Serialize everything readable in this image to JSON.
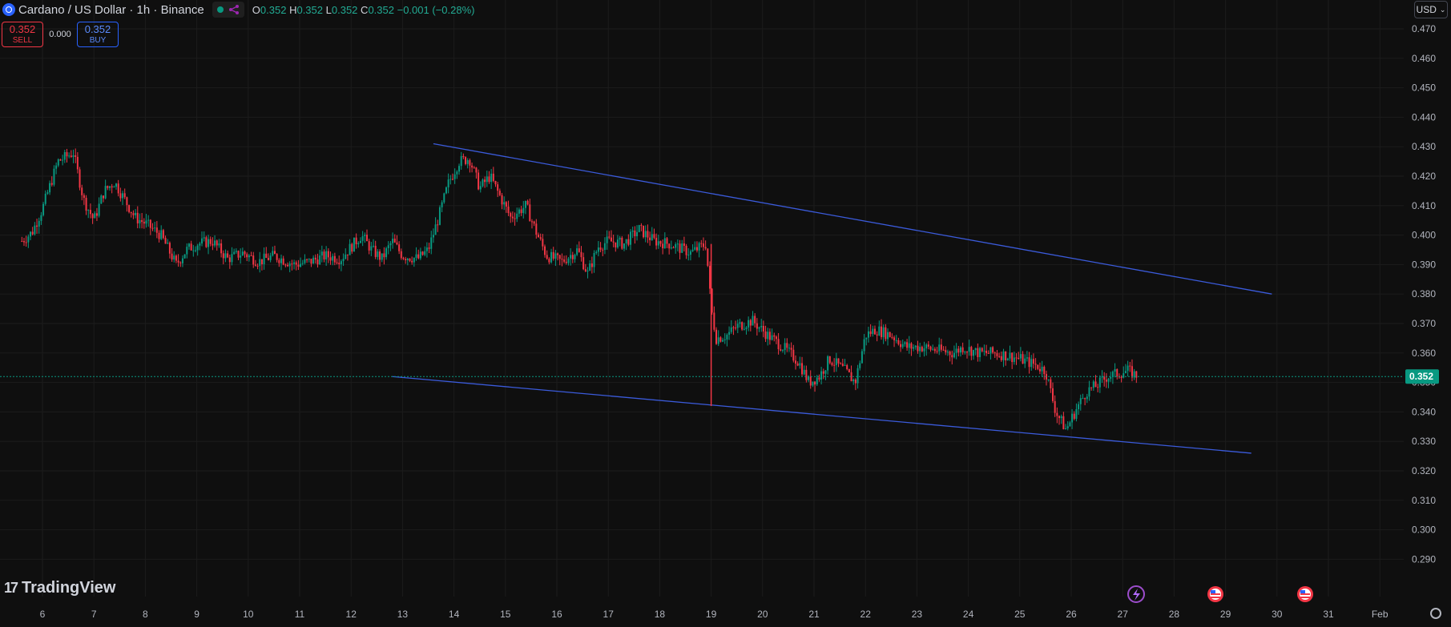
{
  "header": {
    "title": "Cardano / US Dollar · 1h · Binance",
    "ohlc": [
      {
        "key": "O",
        "value": "0.352"
      },
      {
        "key": "H",
        "value": "0.352"
      },
      {
        "key": "L",
        "value": "0.352"
      },
      {
        "key": "C",
        "value": "0.352"
      }
    ],
    "change": "−0.001 (−0.28%)"
  },
  "trade": {
    "sell_price": "0.352",
    "sell_label": "SELL",
    "spread": "0.000",
    "buy_price": "0.352",
    "buy_label": "BUY"
  },
  "currency": "USD",
  "brand": "TradingView",
  "colors": {
    "up": "#089981",
    "down": "#f23645",
    "trendline": "#3b5bdb",
    "price": "#089981"
  },
  "chart_data": {
    "type": "candlestick",
    "price_axis": [
      "0.470",
      "0.460",
      "0.450",
      "0.440",
      "0.430",
      "0.420",
      "0.410",
      "0.400",
      "0.390",
      "0.380",
      "0.370",
      "0.360",
      "0.350",
      "0.340",
      "0.330",
      "0.320",
      "0.310",
      "0.300",
      "0.290"
    ],
    "time_axis": [
      "6",
      "7",
      "8",
      "9",
      "10",
      "11",
      "12",
      "13",
      "14",
      "15",
      "16",
      "17",
      "18",
      "19",
      "20",
      "21",
      "22",
      "23",
      "24",
      "25",
      "26",
      "27",
      "28",
      "29",
      "30",
      "31",
      "Feb"
    ],
    "current_price": "0.352",
    "ylim": [
      0.286,
      0.48
    ],
    "close_path": [
      [
        5.6,
        0.398
      ],
      [
        5.8,
        0.401
      ],
      [
        6.0,
        0.409
      ],
      [
        6.3,
        0.425
      ],
      [
        6.6,
        0.428
      ],
      [
        6.8,
        0.412
      ],
      [
        7.0,
        0.405
      ],
      [
        7.2,
        0.415
      ],
      [
        7.4,
        0.418
      ],
      [
        7.6,
        0.412
      ],
      [
        7.8,
        0.406
      ],
      [
        8.0,
        0.404
      ],
      [
        8.3,
        0.4
      ],
      [
        8.6,
        0.39
      ],
      [
        8.8,
        0.395
      ],
      [
        9.0,
        0.397
      ],
      [
        9.3,
        0.398
      ],
      [
        9.6,
        0.392
      ],
      [
        9.9,
        0.394
      ],
      [
        10.2,
        0.391
      ],
      [
        10.5,
        0.393
      ],
      [
        10.9,
        0.39
      ],
      [
        11.2,
        0.391
      ],
      [
        11.5,
        0.393
      ],
      [
        11.8,
        0.392
      ],
      [
        12.0,
        0.396
      ],
      [
        12.2,
        0.4
      ],
      [
        12.4,
        0.395
      ],
      [
        12.6,
        0.392
      ],
      [
        12.8,
        0.398
      ],
      [
        13.0,
        0.393
      ],
      [
        13.3,
        0.392
      ],
      [
        13.5,
        0.395
      ],
      [
        13.7,
        0.406
      ],
      [
        13.9,
        0.418
      ],
      [
        14.1,
        0.425
      ],
      [
        14.3,
        0.426
      ],
      [
        14.5,
        0.416
      ],
      [
        14.7,
        0.42
      ],
      [
        14.9,
        0.413
      ],
      [
        15.1,
        0.406
      ],
      [
        15.4,
        0.41
      ],
      [
        15.6,
        0.401
      ],
      [
        15.8,
        0.393
      ],
      [
        16.1,
        0.391
      ],
      [
        16.4,
        0.395
      ],
      [
        16.6,
        0.387
      ],
      [
        16.8,
        0.396
      ],
      [
        17.0,
        0.398
      ],
      [
        17.3,
        0.397
      ],
      [
        17.6,
        0.402
      ],
      [
        17.9,
        0.398
      ],
      [
        18.2,
        0.397
      ],
      [
        18.6,
        0.394
      ],
      [
        18.9,
        0.397
      ],
      [
        19.0,
        0.375
      ],
      [
        19.1,
        0.365
      ],
      [
        19.3,
        0.366
      ],
      [
        19.5,
        0.369
      ],
      [
        19.8,
        0.371
      ],
      [
        20.1,
        0.366
      ],
      [
        20.4,
        0.362
      ],
      [
        20.7,
        0.357
      ],
      [
        20.9,
        0.35
      ],
      [
        21.1,
        0.352
      ],
      [
        21.3,
        0.358
      ],
      [
        21.6,
        0.354
      ],
      [
        21.8,
        0.35
      ],
      [
        22.0,
        0.366
      ],
      [
        22.2,
        0.368
      ],
      [
        22.5,
        0.366
      ],
      [
        22.8,
        0.362
      ],
      [
        23.1,
        0.362
      ],
      [
        23.4,
        0.361
      ],
      [
        23.7,
        0.36
      ],
      [
        23.9,
        0.362
      ],
      [
        24.2,
        0.36
      ],
      [
        24.5,
        0.36
      ],
      [
        24.8,
        0.359
      ],
      [
        25.0,
        0.358
      ],
      [
        25.3,
        0.356
      ],
      [
        25.5,
        0.354
      ],
      [
        25.7,
        0.34
      ],
      [
        25.9,
        0.334
      ],
      [
        26.1,
        0.341
      ],
      [
        26.3,
        0.347
      ],
      [
        26.5,
        0.349
      ],
      [
        26.7,
        0.352
      ],
      [
        26.9,
        0.353
      ],
      [
        27.1,
        0.354
      ],
      [
        27.3,
        0.352
      ]
    ],
    "trendlines": [
      {
        "name": "upper",
        "from": [
          13.6,
          0.431
        ],
        "to": [
          29.9,
          0.38
        ]
      },
      {
        "name": "lower",
        "from": [
          12.8,
          0.352
        ],
        "to": [
          29.5,
          0.326
        ]
      }
    ]
  }
}
